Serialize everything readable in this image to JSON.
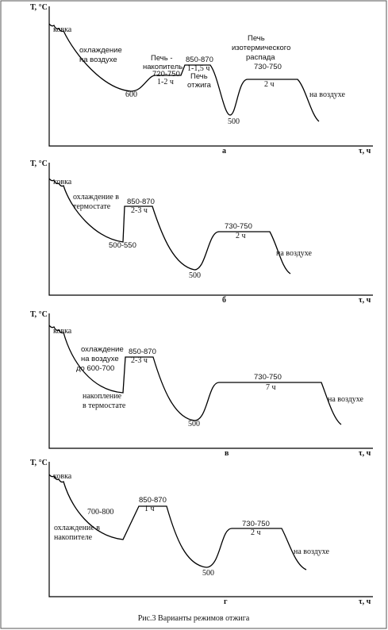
{
  "panels": [
    {
      "y_label": "Т, °С",
      "x_label": "τ, ч",
      "letter": "а",
      "annotations": [
        "ковка",
        "охлаждение",
        "на воздухе",
        "600",
        "Печь -",
        "накопитель",
        "720-750",
        "1-2 ч",
        "850-870",
        "1-1,5 ч",
        "Печь",
        "отжига",
        "500",
        "Печь",
        "изотермического",
        "распада",
        "730-750",
        "2 ч",
        "на воздухе"
      ]
    },
    {
      "y_label": "Т, °С",
      "x_label": "τ, ч",
      "letter": "б",
      "annotations": [
        "ковка",
        "охлаждение в",
        "термостате",
        "850-870",
        "2-3 ч",
        "500-550",
        "500",
        "730-750",
        "2 ч",
        "на воздухе"
      ]
    },
    {
      "y_label": "Т, °С",
      "x_label": "τ, ч",
      "letter": "в",
      "annotations": [
        "ковка",
        "охлаждение",
        "на воздухе",
        "до 600-700",
        "850-870",
        "2-3 ч",
        "накопление",
        "в термостате",
        "500",
        "730-750",
        "7 ч",
        "на воздухе"
      ]
    },
    {
      "y_label": "Т, °С",
      "x_label": "τ, ч",
      "letter": "г",
      "annotations": [
        "ковка",
        "700-800",
        "850-870",
        "1 ч",
        "охлаждение в",
        "накопителе",
        "500",
        "730-750",
        "2 ч",
        "на воздухе"
      ]
    }
  ],
  "caption": "Рис.3 Варианты режимов отжига"
}
